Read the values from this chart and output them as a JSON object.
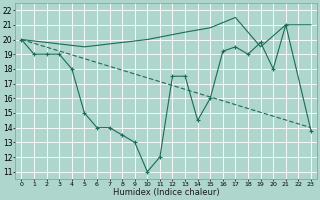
{
  "xlabel": "Humidex (Indice chaleur)",
  "xlim": [
    -0.5,
    23.5
  ],
  "ylim": [
    10.5,
    22.5
  ],
  "xticks": [
    0,
    1,
    2,
    3,
    4,
    5,
    6,
    7,
    8,
    9,
    10,
    11,
    12,
    13,
    14,
    15,
    16,
    17,
    18,
    19,
    20,
    21,
    22,
    23
  ],
  "yticks": [
    11,
    12,
    13,
    14,
    15,
    16,
    17,
    18,
    19,
    20,
    21,
    22
  ],
  "bg": "#aed6cc",
  "grid_color": "#c8e8e0",
  "lc": "#1a6b5a",
  "line1_x": [
    0,
    1,
    2,
    3,
    4,
    5,
    6,
    7,
    8,
    9,
    10,
    11,
    12,
    13,
    14,
    15,
    16,
    17,
    18,
    19,
    20,
    21,
    23
  ],
  "line1_y": [
    20,
    19,
    19,
    19,
    18,
    15,
    14,
    14,
    13.5,
    13,
    11,
    12,
    17.5,
    17.5,
    14.5,
    16,
    19.2,
    19.5,
    19,
    19.8,
    18,
    21,
    13.8
  ],
  "line2_x": [
    0,
    5,
    10,
    13,
    15,
    17,
    19,
    21,
    23
  ],
  "line2_y": [
    20,
    19.5,
    20,
    20.5,
    20.8,
    21.5,
    19.5,
    21,
    21
  ],
  "line3_x": [
    0,
    23
  ],
  "line3_y": [
    20,
    14
  ]
}
